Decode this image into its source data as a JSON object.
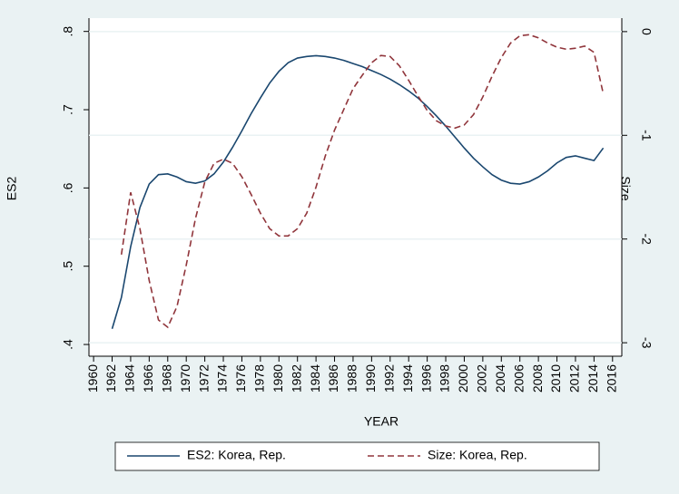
{
  "chart_data": {
    "type": "line",
    "x_label": "YEAR",
    "y_label": "ES2",
    "y2_label": "Size",
    "x": [
      1962,
      1963,
      1964,
      1965,
      1966,
      1967,
      1968,
      1969,
      1970,
      1971,
      1972,
      1973,
      1974,
      1975,
      1976,
      1977,
      1978,
      1979,
      1980,
      1981,
      1982,
      1983,
      1984,
      1985,
      1986,
      1987,
      1988,
      1989,
      1990,
      1991,
      1992,
      1993,
      1994,
      1995,
      1996,
      1997,
      1998,
      1999,
      2000,
      2001,
      2002,
      2003,
      2004,
      2005,
      2006,
      2007,
      2008,
      2009,
      2010,
      2011,
      2012,
      2013,
      2014,
      2015
    ],
    "series": [
      {
        "name": "ES2: Korea, Rep.",
        "color": "#1a476f",
        "dash": false,
        "axis": "y",
        "values": [
          0.42,
          0.46,
          0.525,
          0.575,
          0.605,
          0.617,
          0.618,
          0.614,
          0.608,
          0.606,
          0.609,
          0.618,
          0.633,
          0.652,
          0.673,
          0.695,
          0.715,
          0.734,
          0.749,
          0.76,
          0.766,
          0.768,
          0.769,
          0.768,
          0.766,
          0.763,
          0.759,
          0.755,
          0.75,
          0.745,
          0.739,
          0.732,
          0.724,
          0.715,
          0.704,
          0.692,
          0.679,
          0.665,
          0.651,
          0.638,
          0.627,
          0.617,
          0.61,
          0.606,
          0.605,
          0.608,
          0.614,
          0.622,
          0.632,
          0.639,
          0.641,
          0.638,
          0.635,
          0.651
        ]
      },
      {
        "name": "Size: Korea, Rep.",
        "color": "#90353b",
        "dash": true,
        "axis": "y2",
        "values": [
          null,
          -2.15,
          -1.55,
          -1.9,
          -2.4,
          -2.78,
          -2.85,
          -2.65,
          -2.25,
          -1.8,
          -1.45,
          -1.27,
          -1.23,
          -1.27,
          -1.4,
          -1.57,
          -1.75,
          -1.9,
          -1.97,
          -1.97,
          -1.9,
          -1.75,
          -1.5,
          -1.2,
          -0.95,
          -0.75,
          -0.55,
          -0.42,
          -0.3,
          -0.23,
          -0.24,
          -0.33,
          -0.47,
          -0.62,
          -0.76,
          -0.86,
          -0.91,
          -0.93,
          -0.9,
          -0.8,
          -0.63,
          -0.43,
          -0.25,
          -0.11,
          -0.04,
          -0.03,
          -0.06,
          -0.11,
          -0.15,
          -0.17,
          -0.16,
          -0.14,
          -0.2,
          -0.6
        ]
      }
    ],
    "xlim": [
      1959.5,
      2017
    ],
    "xticks": [
      1960,
      1962,
      1964,
      1966,
      1968,
      1970,
      1972,
      1974,
      1976,
      1978,
      1980,
      1982,
      1984,
      1986,
      1988,
      1990,
      1992,
      1994,
      1996,
      1998,
      2000,
      2002,
      2004,
      2006,
      2008,
      2010,
      2012,
      2014,
      2016
    ],
    "ylim": [
      0.385,
      0.817
    ],
    "yticks": [
      {
        "value": 0.4,
        "label": ".4"
      },
      {
        "value": 0.5,
        "label": ".5"
      },
      {
        "value": 0.6,
        "label": ".6"
      },
      {
        "value": 0.7,
        "label": ".7"
      },
      {
        "value": 0.8,
        "label": ".8"
      }
    ],
    "y2lim": [
      -3.13,
      0.13
    ],
    "y2ticks": [
      -3,
      -2,
      -1,
      0
    ],
    "grid": "y2",
    "legend": "bottom"
  }
}
